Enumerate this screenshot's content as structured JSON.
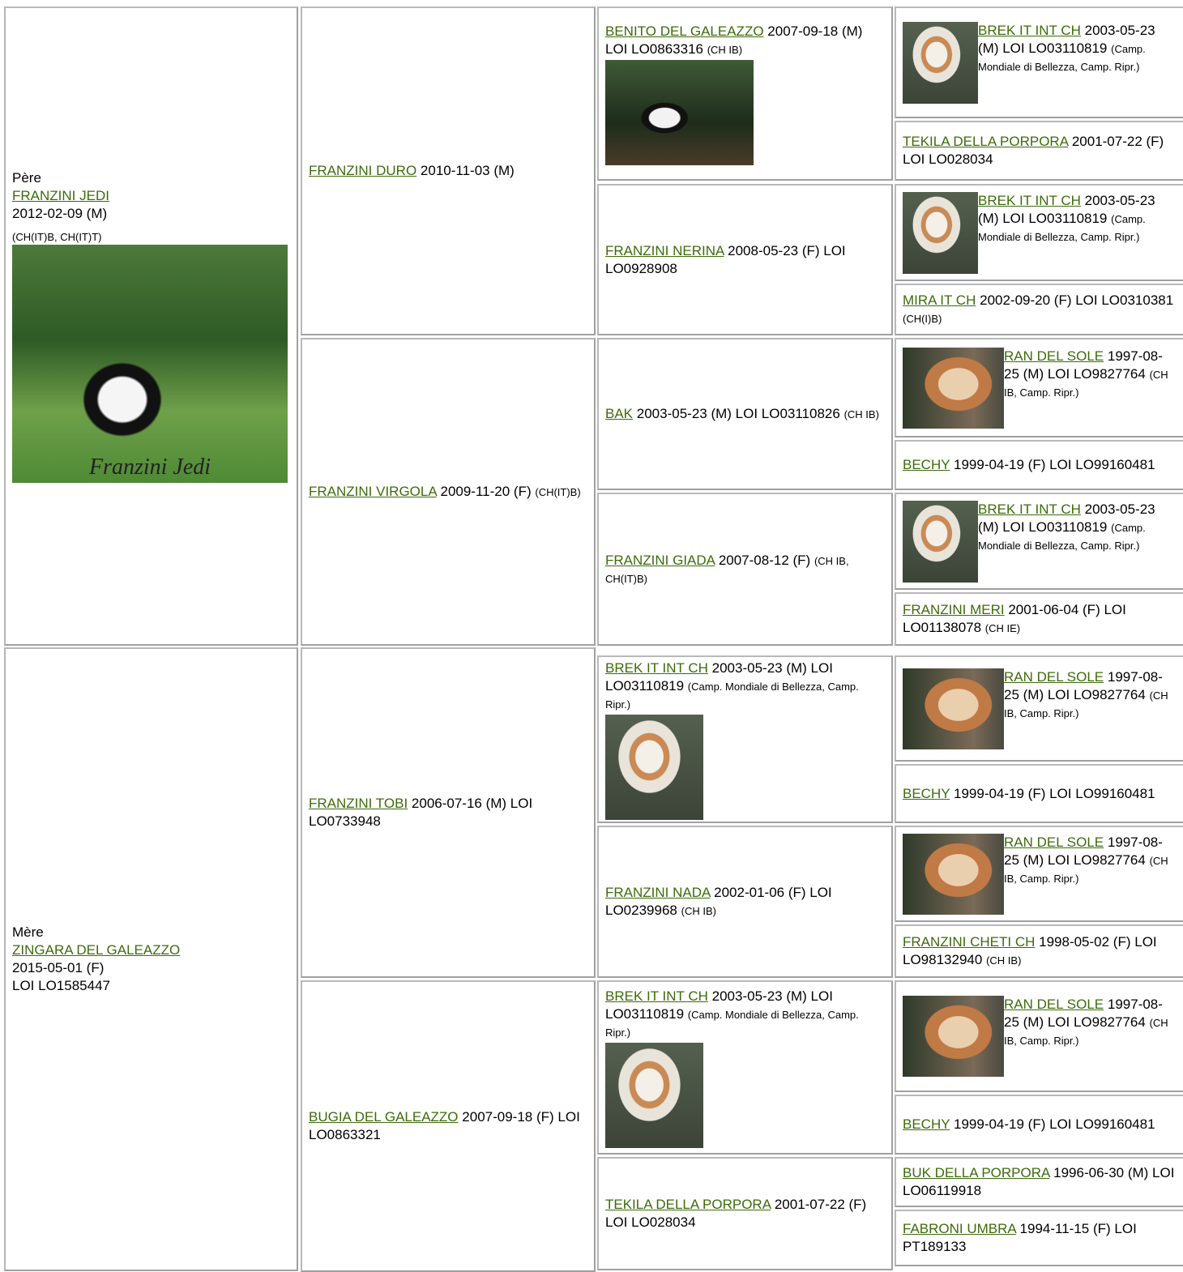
{
  "sire": {
    "label": "Père",
    "name": "FRANZINI JEDI",
    "lines": [
      "2012-02-09 (M)"
    ],
    "titles": "(CH(IT)B, CH(IT)T)",
    "photo_caption": "Franzini Jedi"
  },
  "dam": {
    "label": "Mère",
    "name": "ZINGARA DEL GALEAZZO",
    "lines": [
      "2015-05-01 (F)",
      "LOI LO1585447"
    ]
  },
  "generation_2": [
    {
      "name": "FRANZINI DURO",
      "info": "2010-11-03 (M)"
    },
    {
      "name": "FRANZINI VIRGOLA",
      "info": "2009-11-20 (F)",
      "titles": "(CH(IT)B)"
    },
    {
      "name": "FRANZINI TOBI",
      "info": "2006-07-16 (M) LOI LO0733948"
    },
    {
      "name": "BUGIA DEL GALEAZZO",
      "info": "2007-09-18 (F) LOI LO0863321"
    }
  ],
  "generation_3": [
    {
      "name": "BENITO DEL GALEAZZO",
      "info": "2007-09-18 (M) LOI LO0863316",
      "titles": "(CH IB)"
    },
    {
      "name": "FRANZINI NERINA",
      "info": "2008-05-23 (F) LOI LO0928908"
    },
    {
      "name": "BAK",
      "info": "2003-05-23 (M) LOI LO03110826",
      "titles": "(CH IB)"
    },
    {
      "name": "FRANZINI GIADA",
      "info": "2007-08-12 (F)",
      "titles": "(CH IB, CH(IT)B)"
    },
    {
      "name": "BREK IT INT CH",
      "info": "2003-05-23 (M) LOI LO03110819",
      "titles": "(Camp. Mondiale di Bellezza, Camp. Ripr.)"
    },
    {
      "name": "FRANZINI NADA",
      "info": "2002-01-06 (F) LOI LO0239968",
      "titles": "(CH IB)"
    },
    {
      "name": "BREK IT INT CH",
      "info": "2003-05-23 (M) LOI LO03110819",
      "titles": "(Camp. Mondiale di Bellezza, Camp. Ripr.)"
    },
    {
      "name": "TEKILA DELLA PORPORA",
      "info": "2001-07-22 (F) LOI LO028034"
    }
  ],
  "generation_4": [
    {
      "name": "BREK IT INT CH",
      "info": "2003-05-23 (M) LOI LO03110819",
      "titles": "(Camp. Mondiale di Bellezza, Camp. Ripr.)"
    },
    {
      "name": "TEKILA DELLA PORPORA",
      "info": "2001-07-22 (F) LOI LO028034"
    },
    {
      "name": "BREK IT INT CH",
      "info": "2003-05-23 (M) LOI LO03110819",
      "titles": "(Camp. Mondiale di Bellezza, Camp. Ripr.)"
    },
    {
      "name": "MIRA IT CH",
      "info": "2002-09-20 (F) LOI LO0310381",
      "titles": "(CH(I)B)"
    },
    {
      "name": "RAN DEL SOLE",
      "info": "1997-08-25 (M) LOI LO9827764",
      "titles": "(CH IB, Camp. Ripr.)"
    },
    {
      "name": "BECHY",
      "info": "1999-04-19 (F) LOI LO99160481"
    },
    {
      "name": "BREK IT INT CH",
      "info": "2003-05-23 (M) LOI LO03110819",
      "titles": "(Camp. Mondiale di Bellezza, Camp. Ripr.)"
    },
    {
      "name": "FRANZINI MERI",
      "info": "2001-06-04 (F) LOI LO01138078",
      "titles": "(CH IE)"
    },
    {
      "name": "RAN DEL SOLE",
      "info": "1997-08-25 (M) LOI LO9827764",
      "titles": "(CH IB, Camp. Ripr.)"
    },
    {
      "name": "BECHY",
      "info": "1999-04-19 (F) LOI LO99160481"
    },
    {
      "name": "RAN DEL SOLE",
      "info": "1997-08-25 (M) LOI LO9827764",
      "titles": "(CH IB, Camp. Ripr.)"
    },
    {
      "name": "FRANZINI CHETI CH",
      "info": "1998-05-02 (F) LOI LO98132940",
      "titles": "(CH IB)"
    },
    {
      "name": "RAN DEL SOLE",
      "info": "1997-08-25 (M) LOI LO9827764",
      "titles": "(CH IB, Camp. Ripr.)"
    },
    {
      "name": "BECHY",
      "info": "1999-04-19 (F) LOI LO99160481"
    },
    {
      "name": "BUK DELLA PORPORA",
      "info": "1996-06-30 (M) LOI LO06119918"
    },
    {
      "name": "FABRONI UMBRA",
      "info": "1994-11-15 (F) LOI PT189133"
    }
  ]
}
